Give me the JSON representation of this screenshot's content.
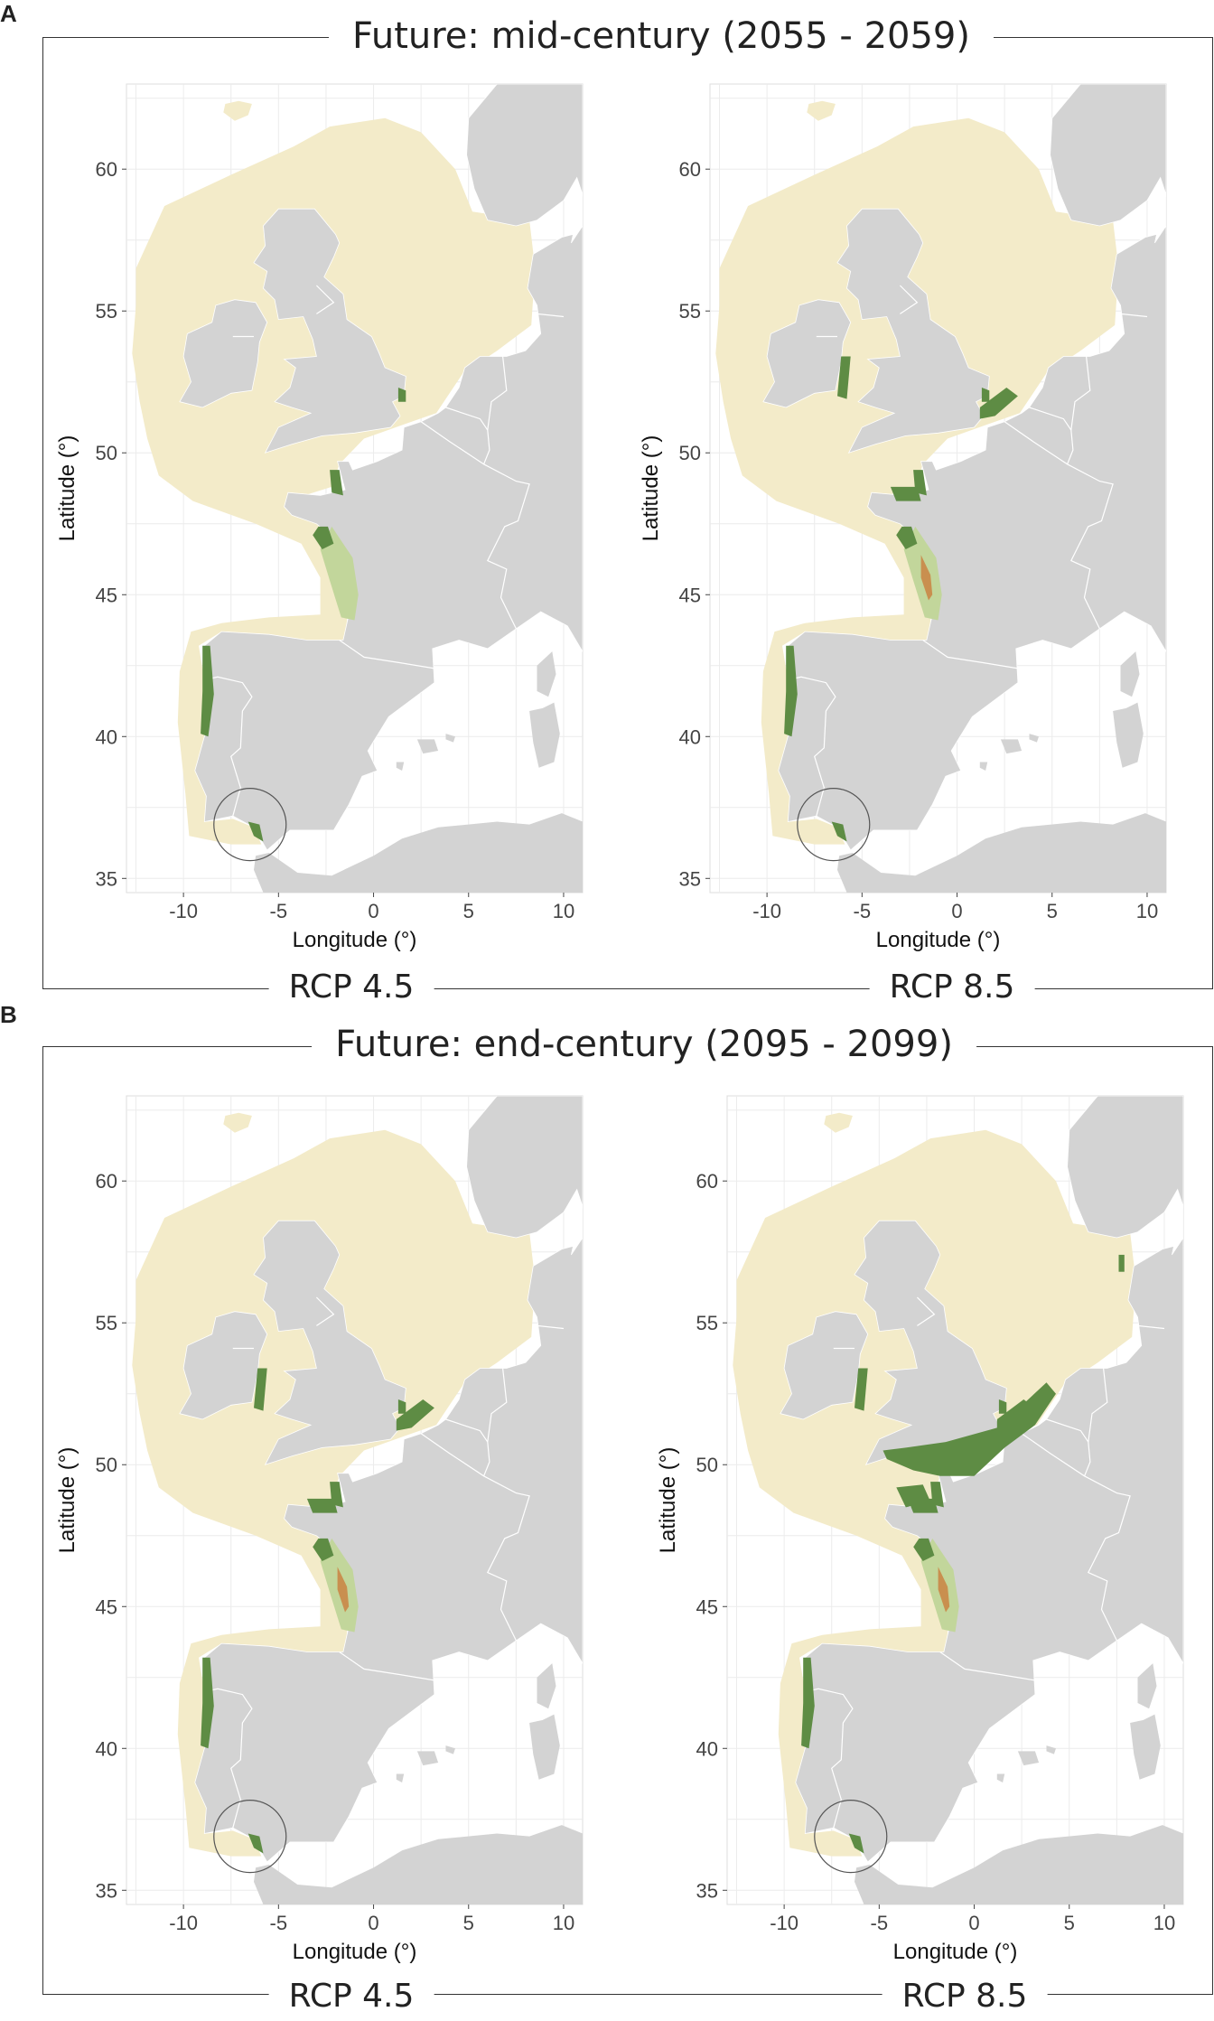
{
  "panels": [
    {
      "letter": "A",
      "title": "Future: mid-century (2055 - 2059)",
      "maps": [
        {
          "scenario": "RCP 4.5",
          "level": 1
        },
        {
          "scenario": "RCP 8.5",
          "level": 2
        }
      ]
    },
    {
      "letter": "B",
      "title": "Future: end-century (2095 - 2099)",
      "maps": [
        {
          "scenario": "RCP 4.5",
          "level": 2
        },
        {
          "scenario": "RCP 8.5",
          "level": 3
        }
      ]
    }
  ],
  "axes": {
    "xlabel": "Longitude (°)",
    "ylabel": "Latitude (°)",
    "xticks": [
      "-10",
      "-5",
      "0",
      "5",
      "10"
    ],
    "yticks": [
      "60",
      "55",
      "50",
      "45",
      "40",
      "35"
    ],
    "x_range": [
      -13,
      11
    ],
    "y_range": [
      34.5,
      63
    ]
  },
  "colors": {
    "land": "#d3d3d3",
    "sea_range": "#f3ebc9",
    "light_green": "#c2d69b",
    "dark_green": "#5e8c44",
    "orange": "#c98f4f",
    "border": "#ffffff",
    "grid": "#ececec"
  }
}
